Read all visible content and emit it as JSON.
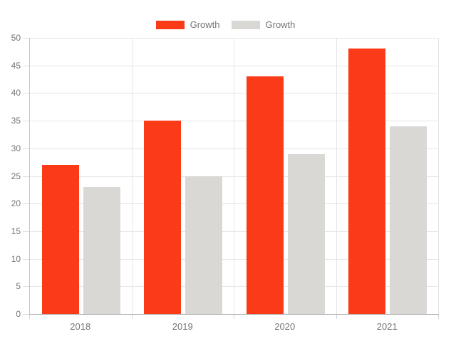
{
  "chart_data": {
    "type": "bar",
    "title": "",
    "categories": [
      "2018",
      "2019",
      "2020",
      "2021"
    ],
    "series": [
      {
        "name": "Growth",
        "color": "#fb3a17",
        "values": [
          27,
          35,
          43,
          48
        ]
      },
      {
        "name": "Growth",
        "color": "#d9d8d5",
        "values": [
          23,
          25,
          29,
          34
        ]
      }
    ],
    "xlabel": "",
    "ylabel": "",
    "ylim": [
      0,
      50
    ],
    "yticks": [
      0,
      5,
      10,
      15,
      20,
      25,
      30,
      35,
      40,
      45,
      50
    ],
    "ytick_labels": [
      "0",
      "5",
      "10",
      "15",
      "20",
      "25",
      "30",
      "35",
      "40",
      "45",
      "50"
    ],
    "grid": true,
    "legend_position": "top",
    "axis_label_color": "#757575"
  }
}
